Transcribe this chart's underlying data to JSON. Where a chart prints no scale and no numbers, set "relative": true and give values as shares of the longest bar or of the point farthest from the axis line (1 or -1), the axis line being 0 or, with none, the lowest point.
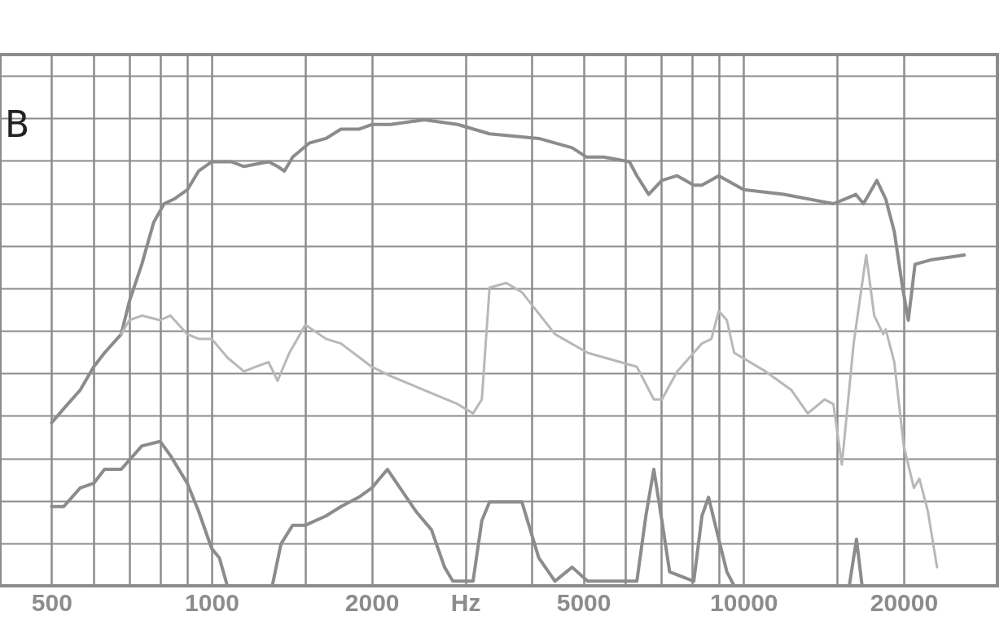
{
  "chart_data": {
    "type": "line",
    "relative": true,
    "annotations": [
      "B"
    ],
    "grid": true,
    "xlim": [
      400,
      30000
    ],
    "log": "x",
    "xticks": [
      500,
      {
        "value": 600,
        "label": null
      },
      {
        "value": 700,
        "label": null
      },
      {
        "value": 800,
        "label": null
      },
      {
        "value": 900,
        "label": null
      },
      1000,
      {
        "value": 1500,
        "label": null
      },
      2000,
      {
        "value": 3000,
        "label": "Hz"
      },
      {
        "value": 4000,
        "label": null
      },
      5000,
      {
        "value": 6000,
        "label": null
      },
      {
        "value": 7000,
        "label": null
      },
      {
        "value": 8000,
        "label": null
      },
      {
        "value": 9000,
        "label": null
      },
      10000,
      {
        "value": 15000,
        "label": null
      },
      20000
    ],
    "series": [
      {
        "color": "#8c8c8e",
        "x": [
          500,
          527,
          566,
          600,
          629,
          676,
          700,
          739,
          778,
          814,
          850,
          900,
          945,
          1000,
          1090,
          1150,
          1279,
          1330,
          1370,
          1420,
          1525,
          1640,
          1750,
          1890,
          2000,
          2170,
          2510,
          2900,
          3330,
          4120,
          4760,
          5070,
          5460,
          6100,
          6300,
          6630,
          7020,
          7500,
          8060,
          8350,
          8980,
          10000,
          11900,
          14750,
          15500,
          16250,
          16800,
          17800,
          18500,
          19200,
          19900,
          20400,
          21000,
          22600,
          26000
        ],
        "values": [
          0.35,
          0.38,
          0.42,
          0.47,
          0.5,
          0.54,
          0.61,
          0.69,
          0.78,
          0.82,
          0.83,
          0.85,
          0.89,
          0.91,
          0.91,
          0.9,
          0.91,
          0.9,
          0.89,
          0.92,
          0.95,
          0.96,
          0.98,
          0.98,
          0.99,
          0.99,
          1.0,
          0.99,
          0.97,
          0.96,
          0.94,
          0.92,
          0.92,
          0.91,
          0.88,
          0.84,
          0.87,
          0.88,
          0.86,
          0.86,
          0.88,
          0.85,
          0.84,
          0.82,
          0.83,
          0.84,
          0.82,
          0.87,
          0.83,
          0.76,
          0.64,
          0.57,
          0.69,
          0.7,
          0.71
        ]
      },
      {
        "color": "#b8b8ba",
        "x": [
          676,
          700,
          739,
          800,
          836,
          900,
          945,
          1000,
          1070,
          1150,
          1210,
          1279,
          1330,
          1400,
          1500,
          1640,
          1750,
          2000,
          2170,
          2510,
          2900,
          3100,
          3220,
          3330,
          3580,
          3830,
          4420,
          5090,
          5870,
          6300,
          6780,
          7020,
          7500,
          8350,
          8700,
          8980,
          9300,
          9600,
          11000,
          12300,
          13200,
          14200,
          14750,
          15300,
          16100,
          17000,
          17600,
          18300,
          18500,
          19200,
          20000,
          20900,
          21400,
          22200,
          23100
        ],
        "values": [
          0.54,
          0.57,
          0.58,
          0.57,
          0.58,
          0.54,
          0.53,
          0.53,
          0.49,
          0.46,
          0.47,
          0.48,
          0.44,
          0.5,
          0.56,
          0.53,
          0.52,
          0.47,
          0.45,
          0.42,
          0.39,
          0.37,
          0.4,
          0.64,
          0.65,
          0.63,
          0.54,
          0.5,
          0.48,
          0.47,
          0.4,
          0.4,
          0.46,
          0.52,
          0.53,
          0.59,
          0.57,
          0.5,
          0.46,
          0.42,
          0.37,
          0.4,
          0.39,
          0.26,
          0.52,
          0.71,
          0.58,
          0.54,
          0.55,
          0.48,
          0.3,
          0.21,
          0.23,
          0.16,
          0.04
        ]
      },
      {
        "color": "#8c8c8e",
        "x": [
          500,
          527,
          566,
          600,
          629,
          676,
          739,
          800,
          836,
          900,
          945,
          1000,
          1034,
          1070,
          1150,
          1300,
          1350,
          1420,
          1500,
          1640,
          1750,
          1890,
          2000,
          2140,
          2260,
          2420,
          2590,
          2740,
          2840,
          3100,
          3220,
          3330,
          3580,
          3830,
          4120,
          4420,
          4760,
          5090,
          6300,
          6550,
          6780,
          7020,
          7260,
          8060,
          8350,
          8590,
          8980,
          9300,
          9600,
          15800,
          16300,
          16700,
          19500
        ],
        "values": [
          0.17,
          0.17,
          0.21,
          0.22,
          0.25,
          0.25,
          0.3,
          0.31,
          0.28,
          0.22,
          0.16,
          0.08,
          0.06,
          0,
          0,
          0,
          0.09,
          0.13,
          0.13,
          0.15,
          0.17,
          0.19,
          0.21,
          0.25,
          0.21,
          0.16,
          0.12,
          0.04,
          0.01,
          0.01,
          0.14,
          0.18,
          0.18,
          0.18,
          0.06,
          0.01,
          0.04,
          0.01,
          0.01,
          0.15,
          0.25,
          0.14,
          0.03,
          0.01,
          0.15,
          0.19,
          0.1,
          0.03,
          0,
          0,
          0.1,
          0,
          0
        ]
      }
    ]
  }
}
